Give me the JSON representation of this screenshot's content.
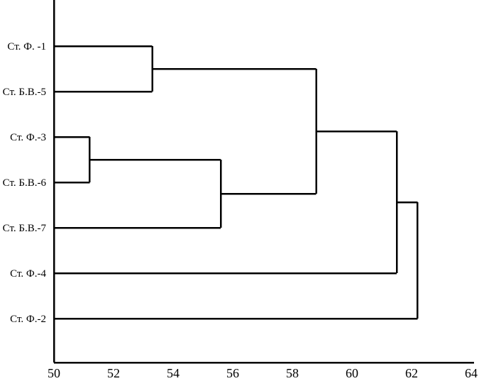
{
  "figure": {
    "background": "#ffffff",
    "line_color": "#000000",
    "text_color": "#000000"
  },
  "chart_data": {
    "type": "dendrogram",
    "orientation": "horizontal",
    "title": "",
    "xlabel": "",
    "ylabel": "",
    "grid": false,
    "legend": null,
    "leaves": [
      "Ст. Ф. -1",
      "Ст. Б.В.-5",
      "Ст. Ф.-3",
      "Ст. Б.В.-6",
      "Ст. Б.В.-7",
      "Ст. Ф.-4",
      "Ст. Ф.-2"
    ],
    "merges": [
      {
        "a": "L2",
        "b": "L3",
        "value": 51.2
      },
      {
        "a": "L0",
        "b": "L1",
        "value": 53.3
      },
      {
        "a": "M0",
        "b": "L4",
        "value": 55.6
      },
      {
        "a": "M1",
        "b": "M2",
        "value": 58.8
      },
      {
        "a": "M3",
        "b": "L5",
        "value": 61.5
      },
      {
        "a": "M4",
        "b": "L6",
        "value": 62.2
      }
    ],
    "xlim": [
      50,
      64
    ],
    "xticks": [
      50,
      52,
      54,
      56,
      58,
      60,
      62,
      64
    ]
  }
}
